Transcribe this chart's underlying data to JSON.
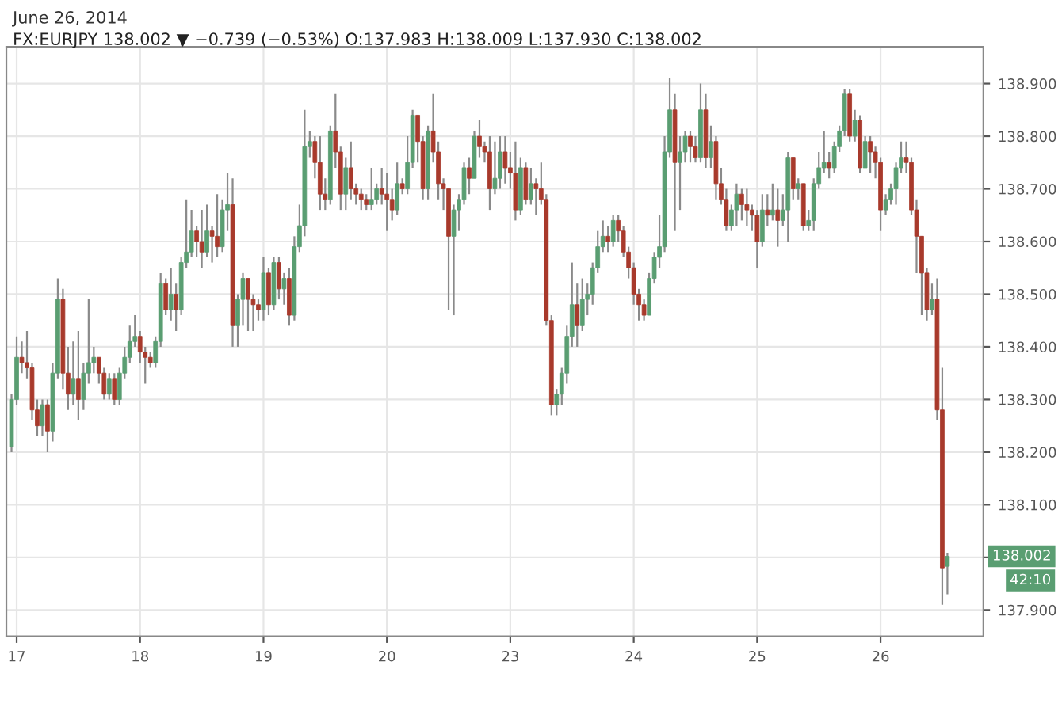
{
  "chart_data": {
    "type": "candlestick",
    "title": "June 26, 2014",
    "subtitle": "FX:EURJPY 138.002 ▼ −0.739 (−0.53%) O:137.983 H:138.009 L:137.930 C:138.002",
    "categories": [
      null,
      "17",
      null,
      null,
      null,
      null,
      null,
      null,
      null,
      null,
      null,
      null,
      null,
      null,
      null,
      null,
      null,
      null,
      null,
      null,
      null,
      null,
      null,
      null,
      null,
      "18",
      null,
      null,
      null,
      null,
      null,
      null,
      null,
      null,
      null,
      null,
      null,
      null,
      null,
      null,
      null,
      null,
      null,
      null,
      null,
      null,
      null,
      null,
      null,
      "19",
      null,
      null,
      null,
      null,
      null,
      null,
      null,
      null,
      null,
      null,
      null,
      null,
      null,
      null,
      null,
      null,
      null,
      null,
      null,
      null,
      null,
      null,
      null,
      "20",
      null,
      null,
      null,
      null,
      null,
      null,
      null,
      null,
      null,
      null,
      null,
      null,
      null,
      null,
      null,
      null,
      null,
      null,
      null,
      null,
      null,
      null,
      null,
      "23",
      null,
      null,
      null,
      null,
      null,
      null,
      null,
      null,
      null,
      null,
      null,
      null,
      null,
      null,
      null,
      null,
      null,
      null,
      null,
      null,
      null,
      null,
      null,
      "24",
      null,
      null,
      null,
      null,
      null,
      null,
      null,
      null,
      null,
      null,
      null,
      null,
      null,
      null,
      null,
      null,
      null,
      null,
      null,
      null,
      null,
      null,
      null,
      "25",
      null,
      null,
      null,
      null,
      null,
      null,
      null,
      null,
      null,
      null,
      null,
      null,
      null,
      null,
      null,
      null,
      null,
      null,
      null,
      null,
      null,
      null,
      null,
      "26",
      null,
      null,
      null,
      null,
      null,
      null,
      null,
      null,
      null,
      null,
      null,
      null,
      null
    ],
    "ohlc": [
      [
        138.21,
        138.31,
        138.2,
        138.3
      ],
      [
        138.3,
        138.42,
        138.29,
        138.38
      ],
      [
        138.38,
        138.41,
        138.35,
        138.37
      ],
      [
        138.37,
        138.43,
        138.34,
        138.36
      ],
      [
        138.36,
        138.37,
        138.26,
        138.28
      ],
      [
        138.28,
        138.3,
        138.23,
        138.25
      ],
      [
        138.25,
        138.3,
        138.23,
        138.29
      ],
      [
        138.29,
        138.3,
        138.2,
        138.24
      ],
      [
        138.24,
        138.37,
        138.22,
        138.35
      ],
      [
        138.35,
        138.53,
        138.34,
        138.49
      ],
      [
        138.49,
        138.51,
        138.32,
        138.35
      ],
      [
        138.35,
        138.4,
        138.28,
        138.31
      ],
      [
        138.31,
        138.41,
        138.29,
        138.34
      ],
      [
        138.34,
        138.43,
        138.26,
        138.3
      ],
      [
        138.3,
        138.37,
        138.28,
        138.35
      ],
      [
        138.35,
        138.49,
        138.33,
        138.37
      ],
      [
        138.37,
        138.4,
        138.35,
        138.38
      ],
      [
        138.38,
        138.38,
        138.33,
        138.35
      ],
      [
        138.35,
        138.36,
        138.3,
        138.31
      ],
      [
        138.31,
        138.35,
        138.3,
        138.34
      ],
      [
        138.34,
        138.35,
        138.29,
        138.3
      ],
      [
        138.3,
        138.36,
        138.29,
        138.35
      ],
      [
        138.35,
        138.4,
        138.34,
        138.38
      ],
      [
        138.38,
        138.44,
        138.37,
        138.41
      ],
      [
        138.41,
        138.46,
        138.4,
        138.42
      ],
      [
        138.42,
        138.43,
        138.37,
        138.39
      ],
      [
        138.39,
        138.4,
        138.33,
        138.38
      ],
      [
        138.38,
        138.39,
        138.36,
        138.37
      ],
      [
        138.37,
        138.42,
        138.36,
        138.41
      ],
      [
        138.41,
        138.54,
        138.4,
        138.52
      ],
      [
        138.52,
        138.53,
        138.46,
        138.47
      ],
      [
        138.47,
        138.55,
        138.45,
        138.5
      ],
      [
        138.5,
        138.52,
        138.43,
        138.47
      ],
      [
        138.47,
        138.57,
        138.46,
        138.56
      ],
      [
        138.56,
        138.68,
        138.55,
        138.58
      ],
      [
        138.58,
        138.66,
        138.57,
        138.62
      ],
      [
        138.62,
        138.63,
        138.57,
        138.6
      ],
      [
        138.6,
        138.66,
        138.55,
        138.58
      ],
      [
        138.58,
        138.67,
        138.57,
        138.62
      ],
      [
        138.62,
        138.63,
        138.56,
        138.61
      ],
      [
        138.61,
        138.69,
        138.57,
        138.59
      ],
      [
        138.59,
        138.68,
        138.58,
        138.66
      ],
      [
        138.66,
        138.73,
        138.62,
        138.67
      ],
      [
        138.67,
        138.72,
        138.4,
        138.44
      ],
      [
        138.44,
        138.5,
        138.4,
        138.49
      ],
      [
        138.49,
        138.54,
        138.44,
        138.53
      ],
      [
        138.53,
        138.53,
        138.43,
        138.49
      ],
      [
        138.49,
        138.5,
        138.43,
        138.48
      ],
      [
        138.48,
        138.49,
        138.45,
        138.47
      ],
      [
        138.47,
        138.57,
        138.45,
        138.54
      ],
      [
        138.54,
        138.55,
        138.46,
        138.48
      ],
      [
        138.48,
        138.57,
        138.47,
        138.56
      ],
      [
        138.56,
        138.57,
        138.49,
        138.51
      ],
      [
        138.51,
        138.54,
        138.48,
        138.53
      ],
      [
        138.53,
        138.55,
        138.44,
        138.46
      ],
      [
        138.46,
        138.61,
        138.45,
        138.59
      ],
      [
        138.59,
        138.67,
        138.58,
        138.63
      ],
      [
        138.63,
        138.85,
        138.61,
        138.78
      ],
      [
        138.78,
        138.81,
        138.76,
        138.79
      ],
      [
        138.79,
        138.8,
        138.72,
        138.75
      ],
      [
        138.75,
        138.8,
        138.66,
        138.69
      ],
      [
        138.69,
        138.72,
        138.66,
        138.68
      ],
      [
        138.68,
        138.82,
        138.67,
        138.81
      ],
      [
        138.81,
        138.88,
        138.74,
        138.77
      ],
      [
        138.77,
        138.78,
        138.66,
        138.69
      ],
      [
        138.69,
        138.76,
        138.66,
        138.74
      ],
      [
        138.74,
        138.79,
        138.68,
        138.7
      ],
      [
        138.7,
        138.71,
        138.67,
        138.69
      ],
      [
        138.69,
        138.7,
        138.66,
        138.68
      ],
      [
        138.68,
        138.69,
        138.66,
        138.67
      ],
      [
        138.67,
        138.74,
        138.66,
        138.68
      ],
      [
        138.68,
        138.71,
        138.67,
        138.7
      ],
      [
        138.7,
        138.74,
        138.67,
        138.69
      ],
      [
        138.69,
        138.73,
        138.62,
        138.68
      ],
      [
        138.68,
        138.7,
        138.64,
        138.66
      ],
      [
        138.66,
        138.75,
        138.65,
        138.71
      ],
      [
        138.71,
        138.72,
        138.69,
        138.7
      ],
      [
        138.7,
        138.8,
        138.69,
        138.75
      ],
      [
        138.75,
        138.85,
        138.74,
        138.84
      ],
      [
        138.84,
        138.84,
        138.75,
        138.79
      ],
      [
        138.79,
        138.8,
        138.68,
        138.7
      ],
      [
        138.7,
        138.82,
        138.68,
        138.81
      ],
      [
        138.81,
        138.88,
        138.75,
        138.77
      ],
      [
        138.77,
        138.79,
        138.68,
        138.71
      ],
      [
        138.71,
        138.72,
        138.66,
        138.7
      ],
      [
        138.7,
        138.7,
        138.47,
        138.61
      ],
      [
        138.61,
        138.67,
        138.46,
        138.66
      ],
      [
        138.66,
        138.69,
        138.62,
        138.68
      ],
      [
        138.68,
        138.75,
        138.67,
        138.74
      ],
      [
        138.74,
        138.76,
        138.69,
        138.72
      ],
      [
        138.72,
        138.81,
        138.72,
        138.8
      ],
      [
        138.8,
        138.83,
        138.76,
        138.78
      ],
      [
        138.78,
        138.79,
        138.75,
        138.77
      ],
      [
        138.77,
        138.8,
        138.66,
        138.7
      ],
      [
        138.7,
        138.79,
        138.69,
        138.72
      ],
      [
        138.72,
        138.8,
        138.7,
        138.77
      ],
      [
        138.77,
        138.8,
        138.71,
        138.74
      ],
      [
        138.74,
        138.77,
        138.7,
        138.73
      ],
      [
        138.73,
        138.79,
        138.64,
        138.66
      ],
      [
        138.66,
        138.76,
        138.65,
        138.74
      ],
      [
        138.74,
        138.75,
        138.67,
        138.68
      ],
      [
        138.68,
        138.74,
        138.67,
        138.71
      ],
      [
        138.71,
        138.72,
        138.65,
        138.7
      ],
      [
        138.7,
        138.75,
        138.67,
        138.68
      ],
      [
        138.68,
        138.69,
        138.44,
        138.45
      ],
      [
        138.45,
        138.46,
        138.27,
        138.29
      ],
      [
        138.29,
        138.32,
        138.27,
        138.31
      ],
      [
        138.31,
        138.36,
        138.29,
        138.35
      ],
      [
        138.35,
        138.44,
        138.33,
        138.42
      ],
      [
        138.42,
        138.56,
        138.4,
        138.48
      ],
      [
        138.48,
        138.52,
        138.4,
        138.44
      ],
      [
        138.44,
        138.53,
        138.43,
        138.49
      ],
      [
        138.49,
        138.52,
        138.46,
        138.5
      ],
      [
        138.5,
        138.56,
        138.48,
        138.55
      ],
      [
        138.55,
        138.62,
        138.54,
        138.59
      ],
      [
        138.59,
        138.64,
        138.58,
        138.61
      ],
      [
        138.61,
        138.63,
        138.58,
        138.6
      ],
      [
        138.6,
        138.65,
        138.59,
        138.64
      ],
      [
        138.64,
        138.65,
        138.6,
        138.62
      ],
      [
        138.62,
        138.63,
        138.57,
        138.58
      ],
      [
        138.58,
        138.59,
        138.53,
        138.55
      ],
      [
        138.55,
        138.56,
        138.48,
        138.5
      ],
      [
        138.5,
        138.51,
        138.45,
        138.48
      ],
      [
        138.48,
        138.49,
        138.45,
        138.46
      ],
      [
        138.46,
        138.54,
        138.46,
        138.53
      ],
      [
        138.53,
        138.58,
        138.52,
        138.57
      ],
      [
        138.57,
        138.65,
        138.55,
        138.59
      ],
      [
        138.59,
        138.8,
        138.58,
        138.77
      ],
      [
        138.77,
        138.91,
        138.76,
        138.85
      ],
      [
        138.85,
        138.88,
        138.62,
        138.75
      ],
      [
        138.75,
        138.8,
        138.66,
        138.77
      ],
      [
        138.77,
        138.81,
        138.75,
        138.8
      ],
      [
        138.8,
        138.81,
        138.75,
        138.78
      ],
      [
        138.78,
        138.8,
        138.75,
        138.76
      ],
      [
        138.76,
        138.9,
        138.75,
        138.85
      ],
      [
        138.85,
        138.88,
        138.74,
        138.76
      ],
      [
        138.76,
        138.82,
        138.74,
        138.79
      ],
      [
        138.79,
        138.8,
        138.68,
        138.71
      ],
      [
        138.71,
        138.74,
        138.67,
        138.68
      ],
      [
        138.68,
        138.7,
        138.62,
        138.63
      ],
      [
        138.63,
        138.67,
        138.62,
        138.66
      ],
      [
        138.66,
        138.71,
        138.63,
        138.69
      ],
      [
        138.69,
        138.7,
        138.64,
        138.67
      ],
      [
        138.67,
        138.7,
        138.63,
        138.66
      ],
      [
        138.66,
        138.67,
        138.62,
        138.65
      ],
      [
        138.65,
        138.66,
        138.55,
        138.6
      ],
      [
        138.6,
        138.69,
        138.59,
        138.66
      ],
      [
        138.66,
        138.69,
        138.63,
        138.65
      ],
      [
        138.65,
        138.71,
        138.64,
        138.66
      ],
      [
        138.66,
        138.7,
        138.59,
        138.64
      ],
      [
        138.64,
        138.69,
        138.63,
        138.66
      ],
      [
        138.66,
        138.77,
        138.6,
        138.76
      ],
      [
        138.76,
        138.76,
        138.68,
        138.7
      ],
      [
        138.7,
        138.72,
        138.68,
        138.71
      ],
      [
        138.71,
        138.71,
        138.62,
        138.63
      ],
      [
        138.63,
        138.66,
        138.62,
        138.64
      ],
      [
        138.64,
        138.72,
        138.62,
        138.71
      ],
      [
        138.71,
        138.77,
        138.7,
        138.74
      ],
      [
        138.74,
        138.81,
        138.73,
        138.75
      ],
      [
        138.75,
        138.77,
        138.72,
        138.74
      ],
      [
        138.74,
        138.79,
        138.73,
        138.78
      ],
      [
        138.78,
        138.82,
        138.77,
        138.81
      ],
      [
        138.81,
        138.89,
        138.8,
        138.88
      ],
      [
        138.88,
        138.89,
        138.79,
        138.8
      ],
      [
        138.8,
        138.85,
        138.79,
        138.83
      ],
      [
        138.83,
        138.84,
        138.73,
        138.74
      ],
      [
        138.74,
        138.8,
        138.74,
        138.79
      ],
      [
        138.79,
        138.8,
        138.73,
        138.77
      ],
      [
        138.77,
        138.78,
        138.72,
        138.75
      ],
      [
        138.75,
        138.76,
        138.62,
        138.66
      ],
      [
        138.66,
        138.69,
        138.65,
        138.68
      ],
      [
        138.68,
        138.71,
        138.67,
        138.7
      ],
      [
        138.7,
        138.75,
        138.67,
        138.74
      ],
      [
        138.74,
        138.79,
        138.73,
        138.76
      ],
      [
        138.76,
        138.79,
        138.73,
        138.75
      ],
      [
        138.75,
        138.76,
        138.65,
        138.66
      ],
      [
        138.66,
        138.68,
        138.54,
        138.61
      ],
      [
        138.61,
        138.61,
        138.46,
        138.54
      ],
      [
        138.54,
        138.55,
        138.45,
        138.47
      ],
      [
        138.47,
        138.52,
        138.46,
        138.49
      ],
      [
        138.49,
        138.53,
        138.26,
        138.28
      ],
      [
        138.28,
        138.36,
        137.91,
        137.98
      ],
      [
        137.983,
        138.009,
        137.93,
        138.002
      ]
    ],
    "colors": [
      "#5a9e72",
      "#5a9e72",
      "#a83a2c",
      "#a83a2c",
      "#a83a2c",
      "#a83a2c",
      "#5a9e72",
      "#a83a2c",
      "#5a9e72",
      "#5a9e72",
      "#a83a2c",
      "#a83a2c",
      "#5a9e72",
      "#a83a2c",
      "#5a9e72",
      "#5a9e72",
      "#5a9e72",
      "#a83a2c",
      "#a83a2c",
      "#5a9e72",
      "#a83a2c",
      "#5a9e72",
      "#5a9e72",
      "#5a9e72",
      "#5a9e72",
      "#a83a2c",
      "#a83a2c",
      "#a83a2c",
      "#5a9e72",
      "#5a9e72",
      "#a83a2c",
      "#5a9e72",
      "#a83a2c",
      "#5a9e72",
      "#5a9e72",
      "#5a9e72",
      "#a83a2c",
      "#a83a2c",
      "#5a9e72",
      "#a83a2c",
      "#a83a2c",
      "#5a9e72",
      "#5a9e72",
      "#a83a2c",
      "#5a9e72",
      "#5a9e72",
      "#a83a2c",
      "#a83a2c",
      "#a83a2c",
      "#5a9e72",
      "#a83a2c",
      "#5a9e72",
      "#a83a2c",
      "#5a9e72",
      "#a83a2c",
      "#5a9e72",
      "#5a9e72",
      "#5a9e72",
      "#5a9e72",
      "#a83a2c",
      "#a83a2c",
      "#a83a2c",
      "#5a9e72",
      "#a83a2c",
      "#a83a2c",
      "#5a9e72",
      "#a83a2c",
      "#a83a2c",
      "#a83a2c",
      "#a83a2c",
      "#5a9e72",
      "#5a9e72",
      "#a83a2c",
      "#a83a2c",
      "#a83a2c",
      "#5a9e72",
      "#a83a2c",
      "#5a9e72",
      "#5a9e72",
      "#a83a2c",
      "#a83a2c",
      "#5a9e72",
      "#a83a2c",
      "#a83a2c",
      "#a83a2c",
      "#a83a2c",
      "#5a9e72",
      "#5a9e72",
      "#5a9e72",
      "#a83a2c",
      "#5a9e72",
      "#a83a2c",
      "#a83a2c",
      "#a83a2c",
      "#5a9e72",
      "#5a9e72",
      "#a83a2c",
      "#a83a2c",
      "#a83a2c",
      "#5a9e72",
      "#a83a2c",
      "#5a9e72",
      "#a83a2c",
      "#a83a2c",
      "#a83a2c",
      "#a83a2c",
      "#5a9e72",
      "#5a9e72",
      "#5a9e72",
      "#5a9e72",
      "#a83a2c",
      "#5a9e72",
      "#5a9e72",
      "#5a9e72",
      "#5a9e72",
      "#5a9e72",
      "#a83a2c",
      "#5a9e72",
      "#a83a2c",
      "#a83a2c",
      "#a83a2c",
      "#a83a2c",
      "#a83a2c",
      "#a83a2c",
      "#5a9e72",
      "#5a9e72",
      "#5a9e72",
      "#5a9e72",
      "#5a9e72",
      "#a83a2c",
      "#5a9e72",
      "#5a9e72",
      "#a83a2c",
      "#a83a2c",
      "#5a9e72",
      "#a83a2c",
      "#5a9e72",
      "#a83a2c",
      "#a83a2c",
      "#a83a2c",
      "#5a9e72",
      "#5a9e72",
      "#a83a2c",
      "#a83a2c",
      "#a83a2c",
      "#a83a2c",
      "#5a9e72",
      "#a83a2c",
      "#5a9e72",
      "#a83a2c",
      "#5a9e72",
      "#5a9e72",
      "#a83a2c",
      "#5a9e72",
      "#a83a2c",
      "#5a9e72",
      "#5a9e72",
      "#5a9e72",
      "#5a9e72",
      "#a83a2c",
      "#5a9e72",
      "#5a9e72",
      "#5a9e72",
      "#a83a2c",
      "#5a9e72",
      "#a83a2c",
      "#5a9e72",
      "#a83a2c",
      "#a83a2c",
      "#a83a2c",
      "#5a9e72",
      "#5a9e72",
      "#5a9e72",
      "#5a9e72",
      "#a83a2c",
      "#a83a2c",
      "#a83a2c",
      "#a83a2c",
      "#a83a2c",
      "#5a9e72",
      "#a83a2c",
      "#a83a2c",
      "#5a9e72"
    ],
    "ylim": [
      137.85,
      138.97
    ],
    "yticks": [
      {
        "value": 137.9,
        "label": "137.900"
      },
      {
        "value": 138.0,
        "label": null
      },
      {
        "value": 138.1,
        "label": "138.100"
      },
      {
        "value": 138.2,
        "label": "138.200"
      },
      {
        "value": 138.3,
        "label": "138.300"
      },
      {
        "value": 138.4,
        "label": "138.400"
      },
      {
        "value": 138.5,
        "label": "138.500"
      },
      {
        "value": 138.6,
        "label": "138.600"
      },
      {
        "value": 138.7,
        "label": "138.700"
      },
      {
        "value": 138.8,
        "label": "138.800"
      },
      {
        "value": 138.9,
        "label": "138.900"
      }
    ],
    "annotations": [
      "138.002",
      "42:10"
    ],
    "grid": true,
    "legend": false
  }
}
